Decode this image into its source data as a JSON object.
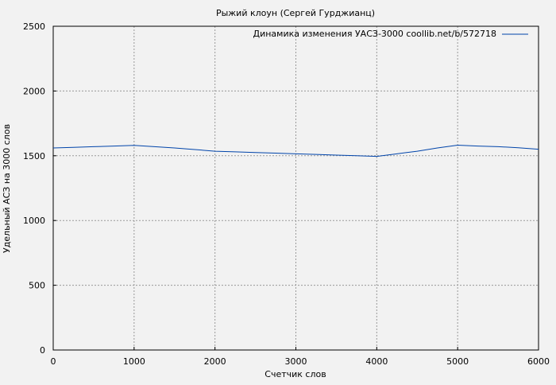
{
  "chart_data": {
    "type": "line",
    "title": "Рыжий клоун (Сергей Гурджианц)",
    "xlabel": "Счетчик слов",
    "ylabel": "Удельный АСЗ на 3000 слов",
    "xlim": [
      0,
      6000
    ],
    "ylim": [
      0,
      2500
    ],
    "xticks": [
      0,
      1000,
      2000,
      3000,
      4000,
      5000,
      6000
    ],
    "yticks": [
      0,
      500,
      1000,
      1500,
      2000,
      2500
    ],
    "grid": true,
    "legend_position": "top-right",
    "series": [
      {
        "name": "Динамика изменения УАСЗ-3000 coollib.net/b/572718",
        "color": "#0044aa",
        "x": [
          0,
          250,
          500,
          750,
          1000,
          1250,
          1500,
          1750,
          2000,
          2250,
          2500,
          2750,
          3000,
          3250,
          3500,
          3750,
          4000,
          4250,
          4500,
          4750,
          5000,
          5250,
          5500,
          5750,
          6000
        ],
        "y": [
          1560,
          1565,
          1570,
          1575,
          1580,
          1570,
          1560,
          1548,
          1535,
          1530,
          1525,
          1520,
          1515,
          1510,
          1505,
          1500,
          1495,
          1515,
          1535,
          1560,
          1582,
          1575,
          1570,
          1562,
          1550
        ]
      }
    ]
  }
}
